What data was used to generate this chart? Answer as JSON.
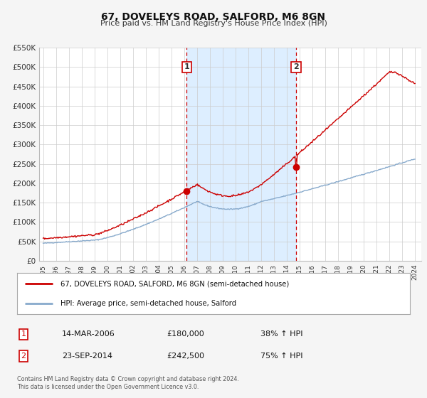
{
  "title": "67, DOVELEYS ROAD, SALFORD, M6 8GN",
  "subtitle": "Price paid vs. HM Land Registry's House Price Index (HPI)",
  "ylim": [
    0,
    550000
  ],
  "yticks": [
    0,
    50000,
    100000,
    150000,
    200000,
    250000,
    300000,
    350000,
    400000,
    450000,
    500000,
    550000
  ],
  "ytick_labels": [
    "£0",
    "£50K",
    "£100K",
    "£150K",
    "£200K",
    "£250K",
    "£300K",
    "£350K",
    "£400K",
    "£450K",
    "£500K",
    "£550K"
  ],
  "xlim_start": 1994.7,
  "xlim_end": 2024.5,
  "xticks": [
    1995,
    1996,
    1997,
    1998,
    1999,
    2000,
    2001,
    2002,
    2003,
    2004,
    2005,
    2006,
    2007,
    2008,
    2009,
    2010,
    2011,
    2012,
    2013,
    2014,
    2015,
    2016,
    2017,
    2018,
    2019,
    2020,
    2021,
    2022,
    2023,
    2024
  ],
  "property_color": "#cc0000",
  "hpi_color": "#88aacc",
  "vline_color": "#cc0000",
  "shade_color": "#ddeeff",
  "sale1_x": 2006.2,
  "sale1_y": 180000,
  "sale2_x": 2014.73,
  "sale2_y": 242500,
  "legend_label1": "67, DOVELEYS ROAD, SALFORD, M6 8GN (semi-detached house)",
  "legend_label2": "HPI: Average price, semi-detached house, Salford",
  "table_row1_num": "1",
  "table_row1_date": "14-MAR-2006",
  "table_row1_price": "£180,000",
  "table_row1_hpi": "38% ↑ HPI",
  "table_row2_num": "2",
  "table_row2_date": "23-SEP-2014",
  "table_row2_price": "£242,500",
  "table_row2_hpi": "75% ↑ HPI",
  "footer": "Contains HM Land Registry data © Crown copyright and database right 2024.\nThis data is licensed under the Open Government Licence v3.0.",
  "bg_color": "#f5f5f5",
  "plot_bg_color": "#ffffff",
  "grid_color": "#cccccc",
  "legend_border_color": "#aaaaaa",
  "num_box_color": "#cc0000"
}
